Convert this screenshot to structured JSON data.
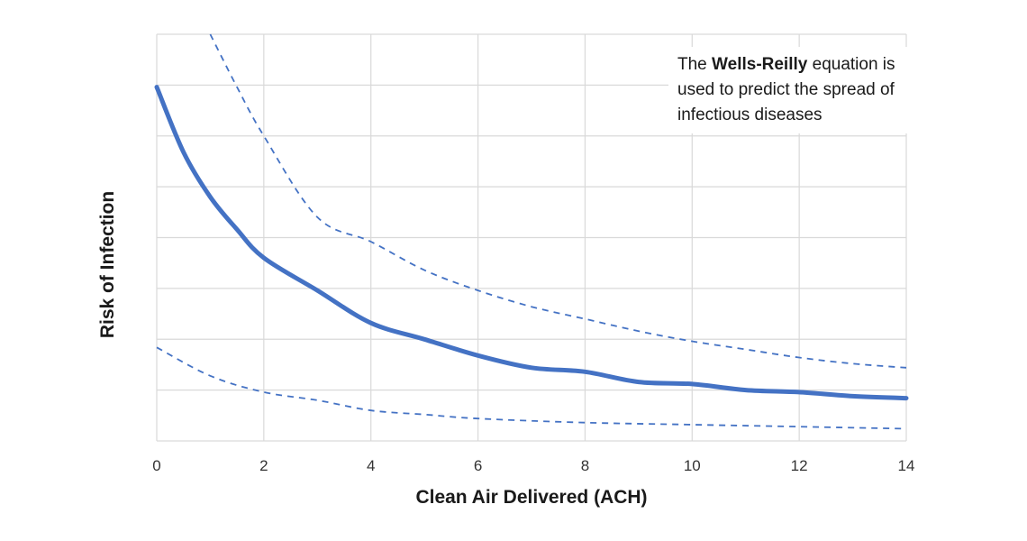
{
  "chart_data": {
    "type": "line",
    "title": "",
    "xlabel": "Clean Air Delivered (ACH)",
    "ylabel": "Risk of Infection",
    "xlim": [
      0,
      14
    ],
    "ylim": [
      0,
      1
    ],
    "x_ticks": [
      "0",
      "2",
      "4",
      "6",
      "8",
      "10",
      "12",
      "14"
    ],
    "grid": true,
    "legend": "none",
    "annotation": {
      "prefix": "The ",
      "bold": "Wells-Reilly",
      "suffix": " equation is used to predict the spread of infectious diseases"
    },
    "series": [
      {
        "style": "solid",
        "color": "#4472c4",
        "x": [
          0,
          0.5,
          1,
          1.5,
          2,
          3,
          4,
          5,
          6,
          7,
          8,
          9,
          10,
          11,
          12,
          13,
          14
        ],
        "y": [
          0.87,
          0.71,
          0.6,
          0.52,
          0.45,
          0.37,
          0.29,
          0.25,
          0.21,
          0.18,
          0.17,
          0.145,
          0.14,
          0.125,
          0.12,
          0.11,
          0.105
        ]
      },
      {
        "style": "dashed",
        "color": "#4472c4",
        "x": [
          1,
          1.5,
          2,
          3,
          4,
          5,
          6,
          7,
          8,
          9,
          10,
          11,
          12,
          13,
          14
        ],
        "y": [
          1.0,
          0.87,
          0.75,
          0.55,
          0.49,
          0.42,
          0.37,
          0.33,
          0.3,
          0.27,
          0.245,
          0.225,
          0.205,
          0.19,
          0.18
        ]
      },
      {
        "style": "dashed",
        "color": "#4472c4",
        "x": [
          0,
          1,
          2,
          3,
          4,
          5,
          6,
          8,
          10,
          12,
          14
        ],
        "y": [
          0.23,
          0.16,
          0.12,
          0.1,
          0.075,
          0.065,
          0.055,
          0.045,
          0.04,
          0.035,
          0.03
        ]
      }
    ]
  }
}
